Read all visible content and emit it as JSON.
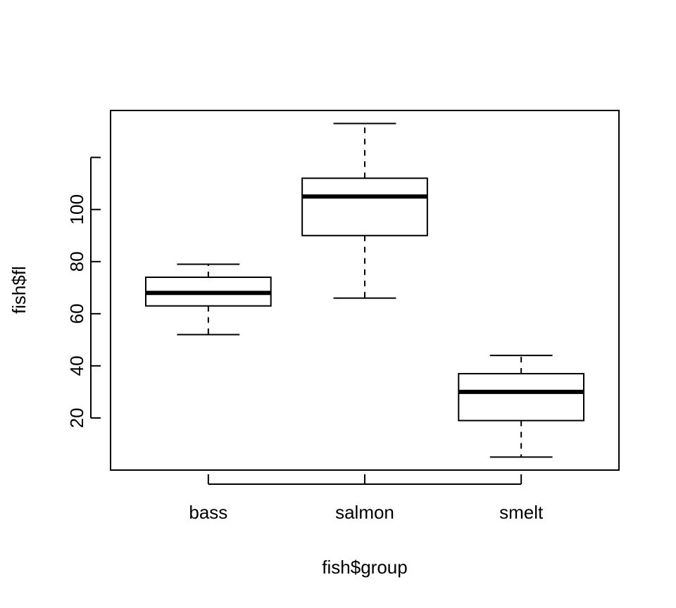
{
  "chart_data": {
    "type": "box",
    "title": "",
    "xlabel": "fish$group",
    "ylabel": "fish$fl",
    "ylim": [
      0,
      138
    ],
    "y_ticks": [
      20,
      40,
      60,
      80,
      100
    ],
    "y_tick_labels": [
      "20",
      "40",
      "60",
      "80",
      "100"
    ],
    "extra_y_tick_marks": [
      120
    ],
    "grid": false,
    "categories": [
      "bass",
      "salmon",
      "smelt"
    ],
    "boxes": [
      {
        "category": "bass",
        "min": 52,
        "q1": 63,
        "median": 68,
        "q3": 74,
        "max": 79
      },
      {
        "category": "salmon",
        "min": 66,
        "q1": 90,
        "median": 105,
        "q3": 112,
        "max": 133
      },
      {
        "category": "smelt",
        "min": 5,
        "q1": 19,
        "median": 30,
        "q3": 37,
        "max": 44
      }
    ],
    "colors": {
      "stroke": "#000000",
      "fill": "#ffffff"
    }
  }
}
